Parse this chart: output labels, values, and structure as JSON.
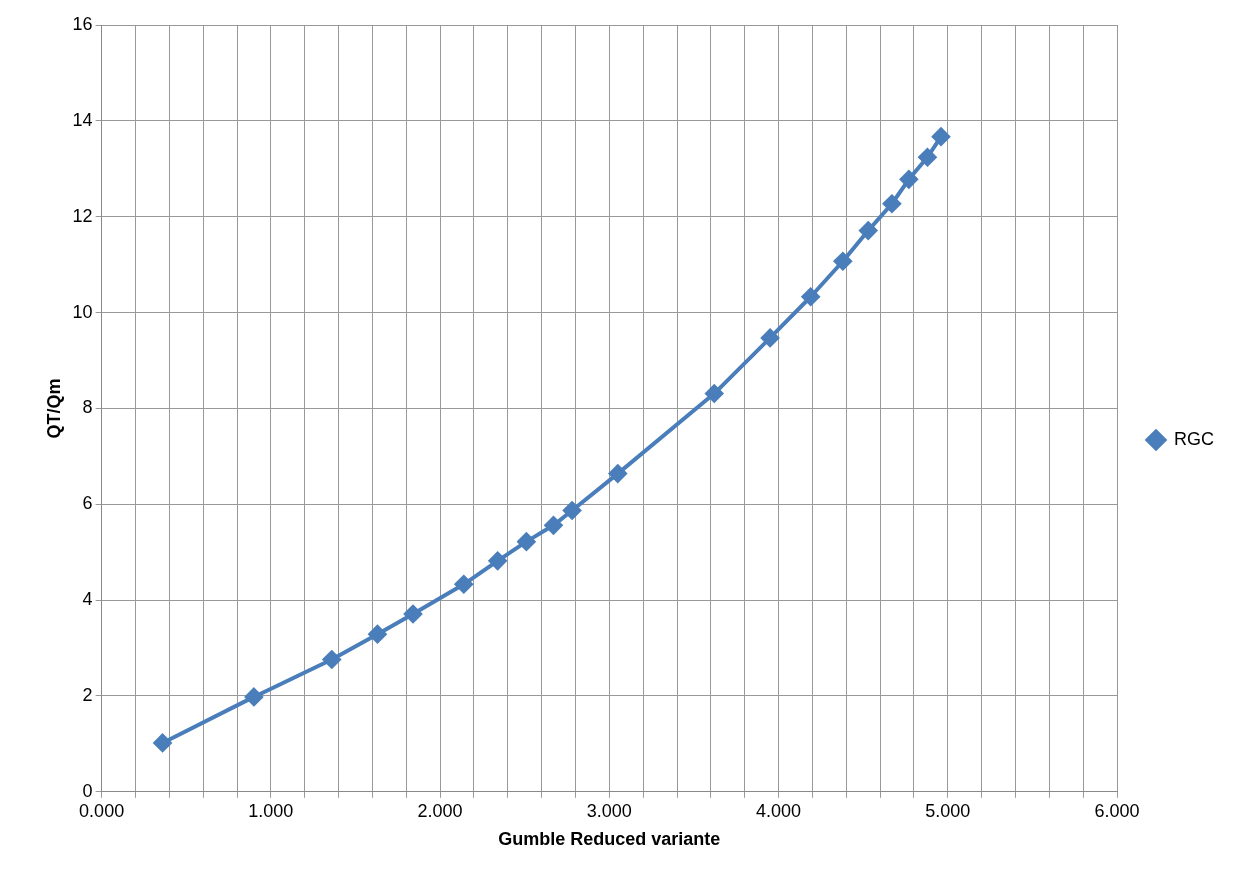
{
  "chart_data": {
    "type": "line",
    "xlabel": "Gumble Reduced variante",
    "ylabel": "QT/Qm",
    "x": [
      0.36,
      0.9,
      1.36,
      1.63,
      1.84,
      2.14,
      2.34,
      2.51,
      2.67,
      2.78,
      3.05,
      3.62,
      3.95,
      4.19,
      4.38,
      4.53,
      4.67,
      4.77,
      4.88,
      4.96
    ],
    "series": [
      {
        "name": "RGC",
        "color": "#4a7ebb",
        "values": [
          1.02,
          1.98,
          2.76,
          3.29,
          3.71,
          4.33,
          4.82,
          5.22,
          5.56,
          5.87,
          6.64,
          8.31,
          9.47,
          10.33,
          11.07,
          11.71,
          12.27,
          12.78,
          13.24,
          13.67
        ]
      }
    ],
    "xlim": [
      0,
      6
    ],
    "xticks": [
      {
        "value": 0,
        "label": "0.000"
      },
      {
        "value": 0.2,
        "label": null
      },
      {
        "value": 0.4,
        "label": null
      },
      {
        "value": 0.6,
        "label": null
      },
      {
        "value": 0.8,
        "label": null
      },
      {
        "value": 1,
        "label": "1.000"
      },
      {
        "value": 1.2,
        "label": null
      },
      {
        "value": 1.4,
        "label": null
      },
      {
        "value": 1.6,
        "label": null
      },
      {
        "value": 1.8,
        "label": null
      },
      {
        "value": 2,
        "label": "2.000"
      },
      {
        "value": 2.2,
        "label": null
      },
      {
        "value": 2.4,
        "label": null
      },
      {
        "value": 2.6,
        "label": null
      },
      {
        "value": 2.8,
        "label": null
      },
      {
        "value": 3,
        "label": "3.000"
      },
      {
        "value": 3.2,
        "label": null
      },
      {
        "value": 3.4,
        "label": null
      },
      {
        "value": 3.6,
        "label": null
      },
      {
        "value": 3.8,
        "label": null
      },
      {
        "value": 4,
        "label": "4.000"
      },
      {
        "value": 4.2,
        "label": null
      },
      {
        "value": 4.4,
        "label": null
      },
      {
        "value": 4.6,
        "label": null
      },
      {
        "value": 4.8,
        "label": null
      },
      {
        "value": 5,
        "label": "5.000"
      },
      {
        "value": 5.2,
        "label": null
      },
      {
        "value": 5.4,
        "label": null
      },
      {
        "value": 5.6,
        "label": null
      },
      {
        "value": 5.8,
        "label": null
      },
      {
        "value": 6,
        "label": "6.000"
      }
    ],
    "ylim": [
      0,
      16
    ],
    "yticks": [
      0,
      2,
      4,
      6,
      8,
      10,
      12,
      14,
      16
    ],
    "grid": true,
    "legend": "right",
    "marker": "diamond",
    "line_style": "solid"
  }
}
